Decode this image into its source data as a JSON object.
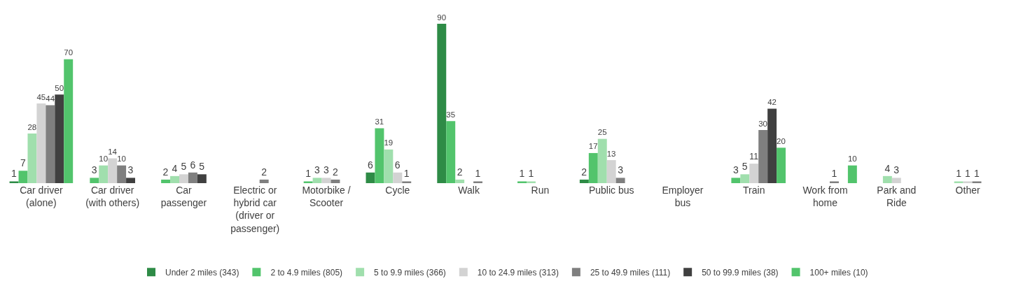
{
  "chart_data": {
    "type": "bar",
    "categories": [
      "Car driver\n(alone)",
      "Car driver\n(with others)",
      "Car\npassenger",
      "Electric or\nhybrid car\n(driver or\npassenger)",
      "Motorbike /\nScooter",
      "Cycle",
      "Walk",
      "Run",
      "Public bus",
      "Employer\nbus",
      "Train",
      "Work from\nhome",
      "Park and\nRide",
      "Other"
    ],
    "series": [
      {
        "name": "Under 2 miles (343)",
        "color": "#2e8b46",
        "values": [
          1,
          null,
          null,
          null,
          null,
          6,
          90,
          null,
          2,
          null,
          null,
          null,
          null,
          null
        ]
      },
      {
        "name": "2 to 4.9 miles (805)",
        "color": "#52c46c",
        "values": [
          7,
          3,
          2,
          null,
          1,
          31,
          35,
          1,
          17,
          null,
          3,
          null,
          null,
          null
        ]
      },
      {
        "name": "5 to 9.9 miles (366)",
        "color": "#a0dfad",
        "values": [
          28,
          10,
          4,
          null,
          3,
          19,
          2,
          1,
          25,
          null,
          5,
          null,
          4,
          1
        ]
      },
      {
        "name": "10 to 24.9 miles (313)",
        "color": "#d3d3d3",
        "values": [
          45,
          14,
          5,
          null,
          3,
          6,
          null,
          null,
          13,
          null,
          11,
          null,
          3,
          1
        ]
      },
      {
        "name": "25 to 49.9 miles (111)",
        "color": "#7f7f7f",
        "values": [
          44,
          10,
          6,
          2,
          2,
          1,
          1,
          null,
          3,
          null,
          30,
          1,
          null,
          1
        ]
      },
      {
        "name": "50 to 99.9 miles (38)",
        "color": "#404040",
        "values": [
          50,
          3,
          5,
          null,
          null,
          null,
          null,
          null,
          null,
          null,
          42,
          null,
          null,
          null
        ]
      },
      {
        "name": "100+ miles (10)",
        "color": "#52c46c",
        "values": [
          70,
          null,
          null,
          null,
          null,
          null,
          null,
          null,
          null,
          null,
          20,
          10,
          null,
          null
        ]
      }
    ],
    "data_labels": true,
    "legend": "bottom",
    "grid": false
  }
}
